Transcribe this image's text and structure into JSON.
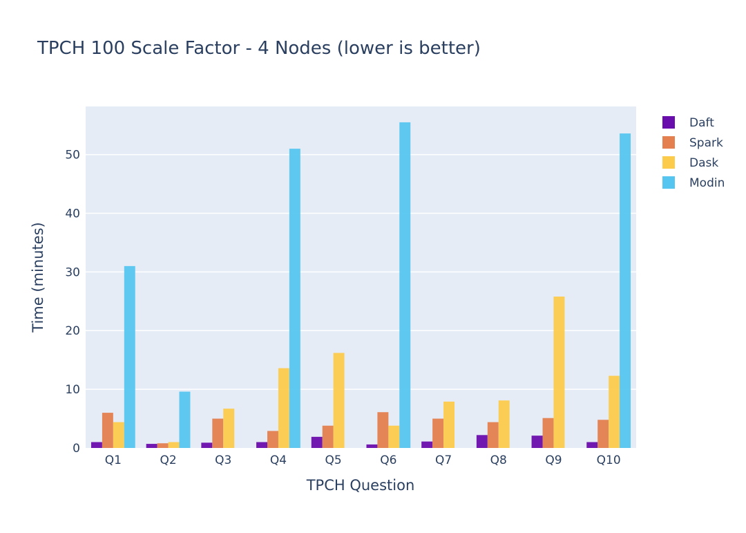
{
  "chart_data": {
    "type": "bar",
    "title": "TPCH 100 Scale Factor - 4 Nodes (lower is better)",
    "xlabel": "TPCH Question",
    "ylabel": "Time (minutes)",
    "categories": [
      "Q1",
      "Q2",
      "Q3",
      "Q4",
      "Q5",
      "Q6",
      "Q7",
      "Q8",
      "Q9",
      "Q10"
    ],
    "ylim": [
      0,
      58.2
    ],
    "yticks": [
      0,
      10,
      20,
      30,
      40,
      50
    ],
    "grid": true,
    "legend_position": "top-right",
    "series": [
      {
        "name": "Daft",
        "color": "#6a0dad",
        "values": [
          1.0,
          0.7,
          0.9,
          1.0,
          1.9,
          0.6,
          1.1,
          2.2,
          2.1,
          1.0
        ]
      },
      {
        "name": "Spark",
        "color": "#e4804f",
        "values": [
          6.0,
          0.8,
          5.0,
          2.9,
          3.8,
          6.1,
          5.0,
          4.4,
          5.1,
          4.8
        ]
      },
      {
        "name": "Dask",
        "color": "#fccb4c",
        "values": [
          4.4,
          1.0,
          6.7,
          13.6,
          16.2,
          3.8,
          7.9,
          8.1,
          25.8,
          12.3
        ]
      },
      {
        "name": "Modin",
        "color": "#56c6f0",
        "values": [
          31.0,
          9.6,
          null,
          51.0,
          null,
          55.5,
          null,
          null,
          null,
          53.6
        ]
      }
    ]
  }
}
